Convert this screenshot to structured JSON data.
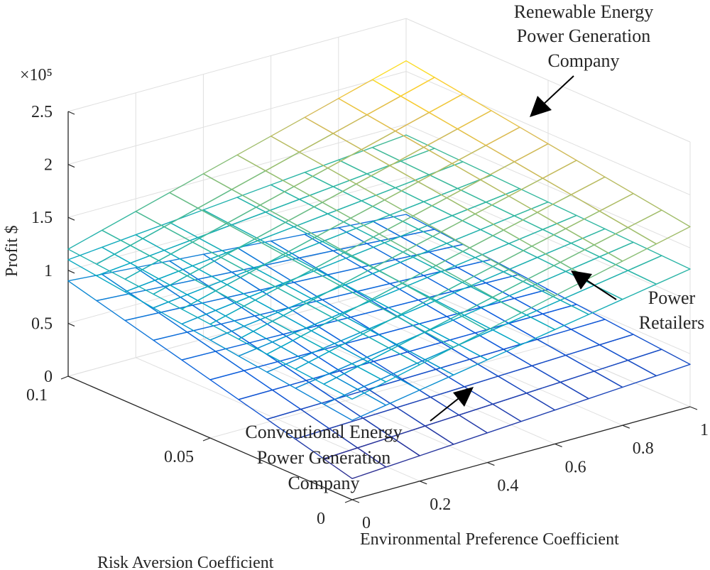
{
  "chart_data": {
    "type": "surface3d",
    "title": "",
    "xlabel": "Environmental Preference Coefficient",
    "ylabel": "Risk Aversion Coefficient",
    "zlabel": "Profit $",
    "z_exponent_label": "×10⁵",
    "xlim": [
      0,
      1
    ],
    "ylim": [
      0,
      0.1
    ],
    "zlim": [
      0,
      250000
    ],
    "x_ticks": [
      "0",
      "0.2",
      "0.4",
      "0.6",
      "0.8",
      "1"
    ],
    "y_ticks": [
      "0",
      "0.05",
      "0.1"
    ],
    "z_ticks": [
      "0",
      "0.5",
      "1",
      "1.5",
      "2",
      "2.5"
    ],
    "x": [
      0,
      0.1,
      0.2,
      0.3,
      0.4,
      0.5,
      0.6,
      0.7,
      0.8,
      0.9,
      1.0
    ],
    "y": [
      0,
      0.01,
      0.02,
      0.03,
      0.04,
      0.05,
      0.06,
      0.07,
      0.08,
      0.09,
      0.1
    ],
    "series": [
      {
        "name": "Renewable Energy Power Generation Company",
        "z_model": {
          "at_x0_y0": 95000,
          "at_x1_y0": 170000,
          "at_x0_y01": 120000,
          "at_x1_y01": 210000
        }
      },
      {
        "name": "Power Retailers",
        "z_model": {
          "at_x0_y0": 75000,
          "at_x1_y0": 130000,
          "at_x0_y01": 110000,
          "at_x1_y01": 140000
        }
      },
      {
        "name": "Conventional Energy Power Generation Company",
        "z_model": {
          "at_x0_y0": 20000,
          "at_x1_y0": 40000,
          "at_x0_y01": 90000,
          "at_x1_y01": 65000
        }
      }
    ],
    "grid": true,
    "colormap": "parula"
  },
  "annotations": {
    "renewable": [
      "Renewable Energy",
      "Power Generation",
      "Company"
    ],
    "retailers": [
      "Power",
      "Retailers"
    ],
    "conventional": [
      "Conventional Energy",
      "Power Generation",
      "Company"
    ]
  }
}
